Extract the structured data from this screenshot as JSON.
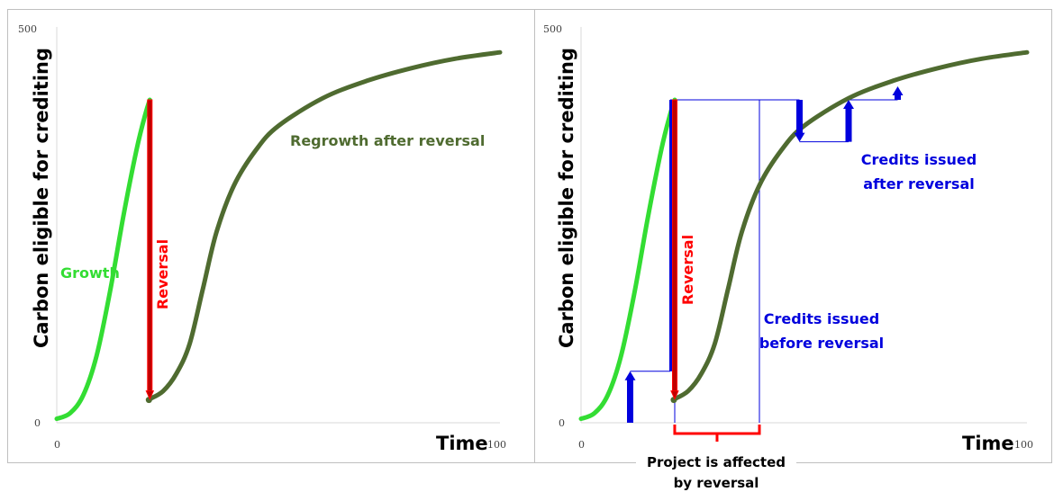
{
  "colors": {
    "growth": "#33dd33",
    "regrowth": "#4f6b30",
    "reversal": "#ff0000",
    "reversal_fill": "#c00000",
    "credits": "#0000dd",
    "axis": "#d9d9d9",
    "frame": "#bfbfbf"
  },
  "chart_data": [
    {
      "type": "line",
      "xlabel": "Time",
      "ylabel": "Carbon eligible for crediting",
      "xlim": [
        0,
        100
      ],
      "ylim": [
        0,
        500
      ],
      "x_ticks": [
        "0",
        "100"
      ],
      "y_ticks": [
        "0",
        "500"
      ],
      "series": [
        {
          "name": "Growth",
          "x": [
            0,
            3,
            6,
            9,
            12,
            15,
            18,
            20,
            21
          ],
          "y": [
            5,
            12,
            35,
            85,
            165,
            260,
            345,
            390,
            408
          ]
        },
        {
          "name": "Regrowth after reversal",
          "x": [
            21,
            24,
            27,
            30,
            33,
            36,
            40,
            45,
            50,
            60,
            70,
            80,
            90,
            100
          ],
          "y": [
            30,
            40,
            62,
            100,
            170,
            240,
            300,
            345,
            375,
            410,
            432,
            448,
            460,
            468
          ]
        }
      ],
      "annotations": [
        {
          "text": "Reversal",
          "type": "arrow",
          "x": 21,
          "y_from": 408,
          "y_to": 30
        }
      ]
    },
    {
      "type": "line",
      "xlabel": "Time",
      "ylabel": "Carbon eligible for crediting",
      "xlim": [
        0,
        100
      ],
      "ylim": [
        0,
        500
      ],
      "x_ticks": [
        "0",
        "100"
      ],
      "y_ticks": [
        "0",
        "500"
      ],
      "series": [
        {
          "name": "Growth",
          "x": [
            0,
            3,
            6,
            9,
            12,
            15,
            18,
            20,
            21
          ],
          "y": [
            5,
            12,
            35,
            85,
            165,
            260,
            345,
            390,
            408
          ]
        },
        {
          "name": "Regrowth",
          "x": [
            21,
            24,
            27,
            30,
            33,
            36,
            40,
            45,
            50,
            60,
            70,
            80,
            90,
            100
          ],
          "y": [
            30,
            40,
            62,
            100,
            170,
            240,
            300,
            345,
            375,
            410,
            432,
            448,
            460,
            468
          ]
        }
      ],
      "credit_arrows_before": [
        {
          "x": 11,
          "from": 0,
          "to": 65
        },
        {
          "x": 20,
          "from": 65,
          "to": 408
        }
      ],
      "credit_arrows_after": [
        {
          "x": 49,
          "from": 408,
          "to": 355
        },
        {
          "x": 60,
          "from": 355,
          "to": 408
        },
        {
          "x": 71,
          "from": 408,
          "to": 425
        }
      ],
      "annotations": [
        {
          "text": "Reversal",
          "type": "arrow",
          "x": 21,
          "y_from": 408,
          "y_to": 30
        },
        {
          "text": "Credits issued before reversal"
        },
        {
          "text": "Credits issued after reversal"
        },
        {
          "text": "Project is affected by reversal",
          "type": "bracket",
          "x_from": 21,
          "x_to": 40
        }
      ]
    }
  ],
  "labels": {
    "growth": "Growth",
    "reversal": "Reversal",
    "regrowth": "Regrowth after reversal",
    "credits_before_1": "Credits issued",
    "credits_before_2": "before reversal",
    "credits_after_1": "Credits issued",
    "credits_after_2": "after reversal",
    "affected_1": "Project is affected",
    "affected_2": "by reversal"
  }
}
